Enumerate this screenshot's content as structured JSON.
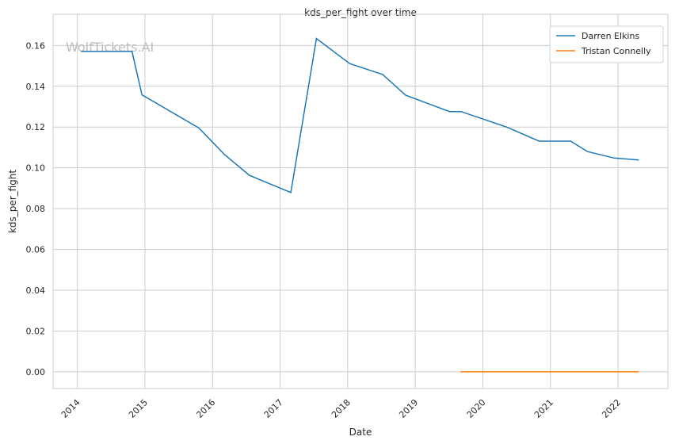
{
  "chart_data": {
    "type": "line",
    "title": "kds_per_fight over time",
    "xlabel": "Date",
    "ylabel": "kds_per_fight",
    "watermark": "WolfTickets.AI",
    "xlim": [
      "2013-08-23",
      "2022-09-27"
    ],
    "ylim": [
      -0.0082,
      0.1753
    ],
    "x_ticks": [
      "2014",
      "2015",
      "2016",
      "2017",
      "2018",
      "2019",
      "2020",
      "2021",
      "2022"
    ],
    "y_ticks": [
      "0.00",
      "0.02",
      "0.04",
      "0.06",
      "0.08",
      "0.10",
      "0.12",
      "0.14",
      "0.16"
    ],
    "grid": true,
    "legend_position": "top-right",
    "series": [
      {
        "name": "Darren Elkins",
        "color": "#1f77b4",
        "x": [
          "2014-01-21",
          "2014-10-23",
          "2014-12-16",
          "2015-10-19",
          "2016-03-06",
          "2016-07-19",
          "2017-02-28",
          "2017-07-16",
          "2018-01-12",
          "2018-07-09",
          "2018-11-10",
          "2019-07-05",
          "2019-09-05",
          "2020-05-08",
          "2020-10-31",
          "2021-04-20",
          "2021-07-19",
          "2021-12-10",
          "2022-04-23"
        ],
        "y": [
          0.1571,
          0.1571,
          0.1358,
          0.1196,
          0.1065,
          0.0963,
          0.0879,
          0.1634,
          0.1511,
          0.1458,
          0.1356,
          0.1276,
          0.1276,
          0.12,
          0.1131,
          0.1131,
          0.108,
          0.1048,
          0.1039
        ]
      },
      {
        "name": "Tristan Connelly",
        "color": "#ff7f0e",
        "x": [
          "2019-09-01",
          "2020-05-08",
          "2021-04-20",
          "2022-04-23"
        ],
        "y": [
          0,
          0,
          0,
          0
        ]
      }
    ]
  }
}
